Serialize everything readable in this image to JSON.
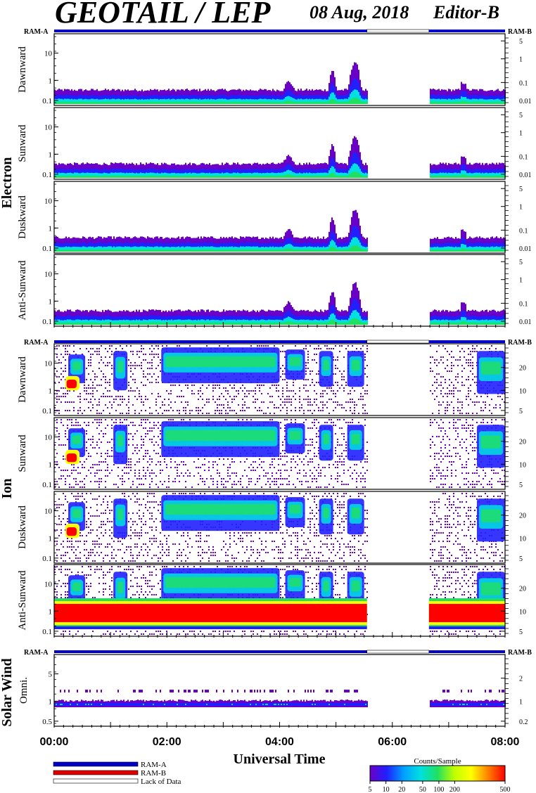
{
  "header": {
    "title": "GEOTAIL / LEP",
    "date": "08 Aug, 2018",
    "editor": "Editor-B"
  },
  "ram_labels": {
    "left": "RAM-A",
    "right": "RAM-B"
  },
  "colors": {
    "ram_a": "#0000c8",
    "ram_b": "#e00000",
    "lack_of_data": "#ffffff",
    "colorbar": [
      "#6a00c8",
      "#2020ff",
      "#00a0ff",
      "#00e0e0",
      "#20e060",
      "#c0ff00",
      "#ffff00",
      "#ff8000",
      "#ff0000"
    ]
  },
  "groups": {
    "electron": "Electron",
    "ion": "Ion",
    "solar_wind": "Solar Wind"
  },
  "chart_data": [
    {
      "type": "heatmap",
      "group": "Electron",
      "panels": [
        {
          "name": "Dawnward",
          "left_ticks": [
            "10",
            "1",
            "0.1"
          ],
          "right_ticks": [
            "5",
            "1",
            "0.1",
            "0.01"
          ]
        },
        {
          "name": "Sunward",
          "left_ticks": [
            "10",
            "1",
            "0.1"
          ],
          "right_ticks": [
            "5",
            "1",
            "0.1",
            "0.01"
          ]
        },
        {
          "name": "Duskward",
          "left_ticks": [
            "10",
            "1",
            "0.1"
          ],
          "right_ticks": [
            "5",
            "1",
            "0.1",
            "0.01"
          ]
        },
        {
          "name": "Anti-Sunward",
          "left_ticks": [
            "10",
            "1",
            "0.1"
          ],
          "right_ticks": [
            "5",
            "1",
            "0.1",
            "0.01"
          ]
        }
      ]
    },
    {
      "type": "heatmap",
      "group": "Ion",
      "panels": [
        {
          "name": "Dawnward",
          "left_ticks": [
            "10",
            "1",
            "0.1"
          ],
          "right_ticks": [
            "20",
            "10",
            "5"
          ]
        },
        {
          "name": "Sunward",
          "left_ticks": [
            "10",
            "1",
            "0.1"
          ],
          "right_ticks": [
            "20",
            "10",
            "5"
          ]
        },
        {
          "name": "Duskward",
          "left_ticks": [
            "10",
            "1",
            "0.1"
          ],
          "right_ticks": [
            "20",
            "10",
            "5"
          ]
        },
        {
          "name": "Anti-Sunward",
          "left_ticks": [
            "10",
            "1",
            "0.1"
          ],
          "right_ticks": [
            "20",
            "10",
            "5"
          ]
        }
      ]
    },
    {
      "type": "heatmap",
      "group": "Solar Wind",
      "panels": [
        {
          "name": "Omni.",
          "left_ticks": [
            "5",
            "1",
            "0.5"
          ],
          "right_ticks": [
            "2",
            "1",
            "0.2"
          ]
        }
      ]
    }
  ],
  "time_axis": {
    "label": "Universal Time",
    "ticks": [
      "00:00",
      "02:00",
      "04:00",
      "06:00",
      "08:00"
    ],
    "range_hours": [
      0,
      8
    ],
    "data_gap_hours": [
      5.55,
      6.65
    ]
  },
  "legend": {
    "items": [
      "RAM-A",
      "RAM-B",
      "Lack of Data"
    ]
  },
  "colorbar": {
    "title": "Counts/Sample",
    "ticks": [
      "5",
      "10",
      "20",
      "50",
      "100",
      "200",
      "500"
    ]
  }
}
